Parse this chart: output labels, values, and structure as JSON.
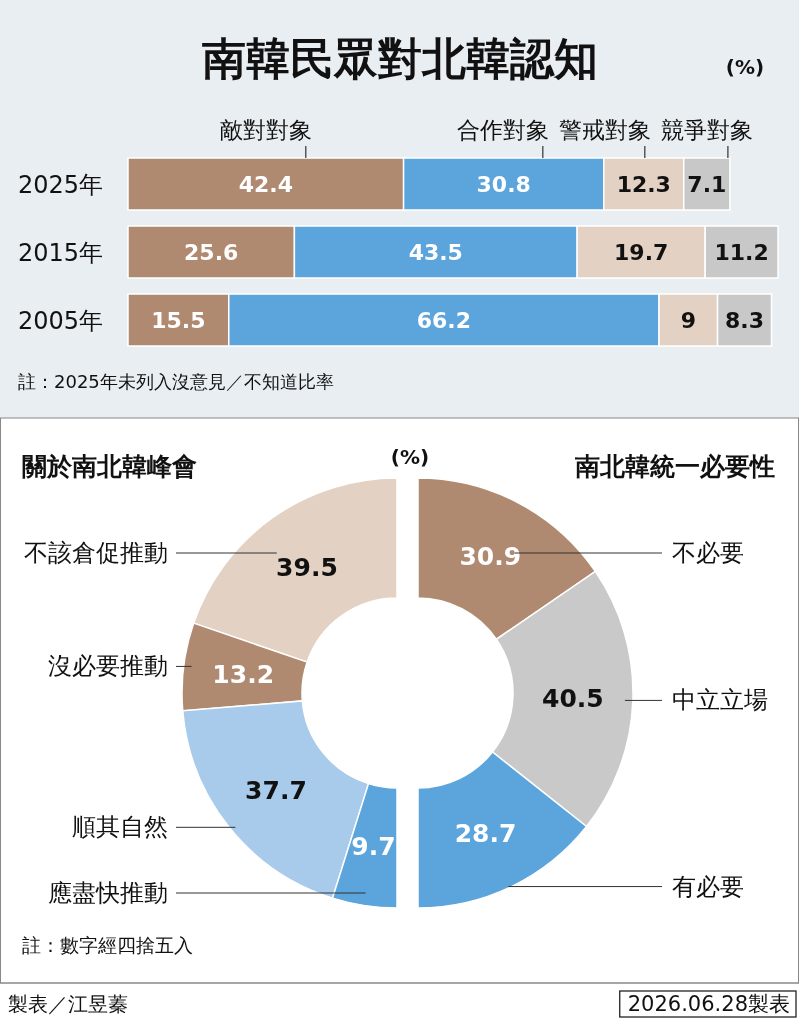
{
  "chart_data": [
    {
      "type": "bar",
      "orientation": "horizontal",
      "stacked": true,
      "title": "南韓民眾對北韓認知",
      "subtitle": "(%)",
      "categories": [
        "2025年",
        "2015年",
        "2005年"
      ],
      "series": [
        {
          "name": "敵對對象",
          "color": "#b08a70",
          "values": [
            42.4,
            25.6,
            15.5
          ]
        },
        {
          "name": "合作對象",
          "color": "#5ba4dc",
          "values": [
            30.8,
            43.5,
            66.2
          ]
        },
        {
          "name": "警戒對象",
          "color": "#e3d1c3",
          "values": [
            12.3,
            19.7,
            9
          ]
        },
        {
          "name": "競爭對象",
          "color": "#c8c8c8",
          "values": [
            7.1,
            11.2,
            8.3
          ]
        }
      ],
      "data_labels": true,
      "legend": "top",
      "annotations": [
        "註：2025年未列入沒意見／不知道比率"
      ]
    },
    {
      "type": "donut",
      "title": "關於南北韓峰會",
      "subtitle": "(%)",
      "categories": [
        "不該倉促推動",
        "沒必要推動",
        "順其自然",
        "應盡快推動"
      ],
      "values": [
        39.5,
        13.2,
        37.7,
        9.7
      ],
      "colors": [
        "#e3d1c3",
        "#b08a70",
        "#a9cbeb",
        "#5ba4dc"
      ],
      "data_labels": true,
      "annotations": [
        "註：數字經四捨五入"
      ]
    },
    {
      "type": "donut",
      "title": "南北韓統一必要性",
      "categories": [
        "不必要",
        "中立立場",
        "有必要"
      ],
      "values": [
        30.9,
        40.5,
        28.7
      ],
      "colors": [
        "#b08a70",
        "#c9c9c9",
        "#5ba4dc"
      ],
      "data_labels": true,
      "annotations": [
        "製表／江昱蓁",
        "2026.06.28製表"
      ]
    }
  ]
}
